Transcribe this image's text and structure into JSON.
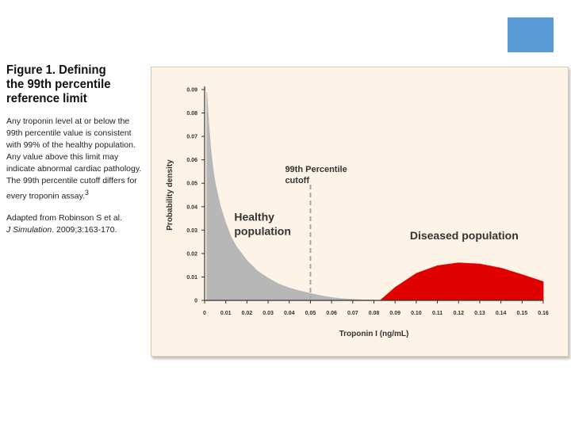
{
  "caption": {
    "title": "Figure 1. Defining\nthe 99th percentile\nreference limit",
    "body": "Any troponin level at or below the\n99th percentile value is consistent\nwith 99% of the healthy population.\nAny value above this limit may\nindicate abnormal cardiac pathology.\nThe 99th percentile cutoff differs for\nevery troponin assay.",
    "footnote_marker": "3",
    "ref_prefix": "Adapted from Robinson S et al.",
    "ref_journal": "J Simulation",
    "ref_suffix": ". 2009;3:163-170."
  },
  "colors": {
    "accent_square": "#5b9bd5",
    "panel_background": "#fdf3e7",
    "healthy": "#b7b7b7",
    "diseased": "#e10000",
    "cutoff_line": "#a9a9a9"
  },
  "chart_data": {
    "type": "area",
    "xlabel": "Troponin I (ng/mL)",
    "ylabel": "Probability density",
    "xlim": [
      0,
      0.16
    ],
    "ylim": [
      0,
      0.09
    ],
    "x_ticks": [
      "0",
      "0.01",
      "0.02",
      "0.03",
      "0.04",
      "0.05",
      "0.06",
      "0.07",
      "0.08",
      "0.09",
      "0.10",
      "0.11",
      "0.12",
      "0.13",
      "0.14",
      "0.15",
      "0.16"
    ],
    "y_ticks": [
      "0",
      "0.01",
      "0.02",
      "0.03",
      "0.04",
      "0.05",
      "0.06",
      "0.07",
      "0.08",
      "0.09"
    ],
    "grid": false,
    "series": [
      {
        "name": "Healthy population",
        "color": "#b7b7b7",
        "x": [
          0.001,
          0.002,
          0.003,
          0.004,
          0.005,
          0.0075,
          0.01,
          0.0125,
          0.015,
          0.02,
          0.025,
          0.03,
          0.035,
          0.04,
          0.045,
          0.05,
          0.055,
          0.06,
          0.065,
          0.07,
          0.075,
          0.08
        ],
        "y": [
          0.089,
          0.075,
          0.064,
          0.056,
          0.05,
          0.04,
          0.033,
          0.027,
          0.023,
          0.017,
          0.0125,
          0.0095,
          0.007,
          0.0053,
          0.004,
          0.003,
          0.002,
          0.0012,
          0.0007,
          0.0004,
          0.0002,
          0.0001
        ]
      },
      {
        "name": "Diseased population",
        "color": "#e10000",
        "x": [
          0.083,
          0.09,
          0.1,
          0.11,
          0.12,
          0.13,
          0.14,
          0.15,
          0.16
        ],
        "y": [
          0.0,
          0.0055,
          0.0115,
          0.0148,
          0.016,
          0.0155,
          0.0138,
          0.011,
          0.008
        ]
      }
    ],
    "cutoff": {
      "x": 0.05,
      "label": "99th Percentile\ncutoff"
    },
    "annotations": [
      {
        "text": "Healthy\npopulation",
        "x": 0.014,
        "y": 0.034
      },
      {
        "text": "Diseased population",
        "x": 0.097,
        "y": 0.026
      }
    ]
  }
}
